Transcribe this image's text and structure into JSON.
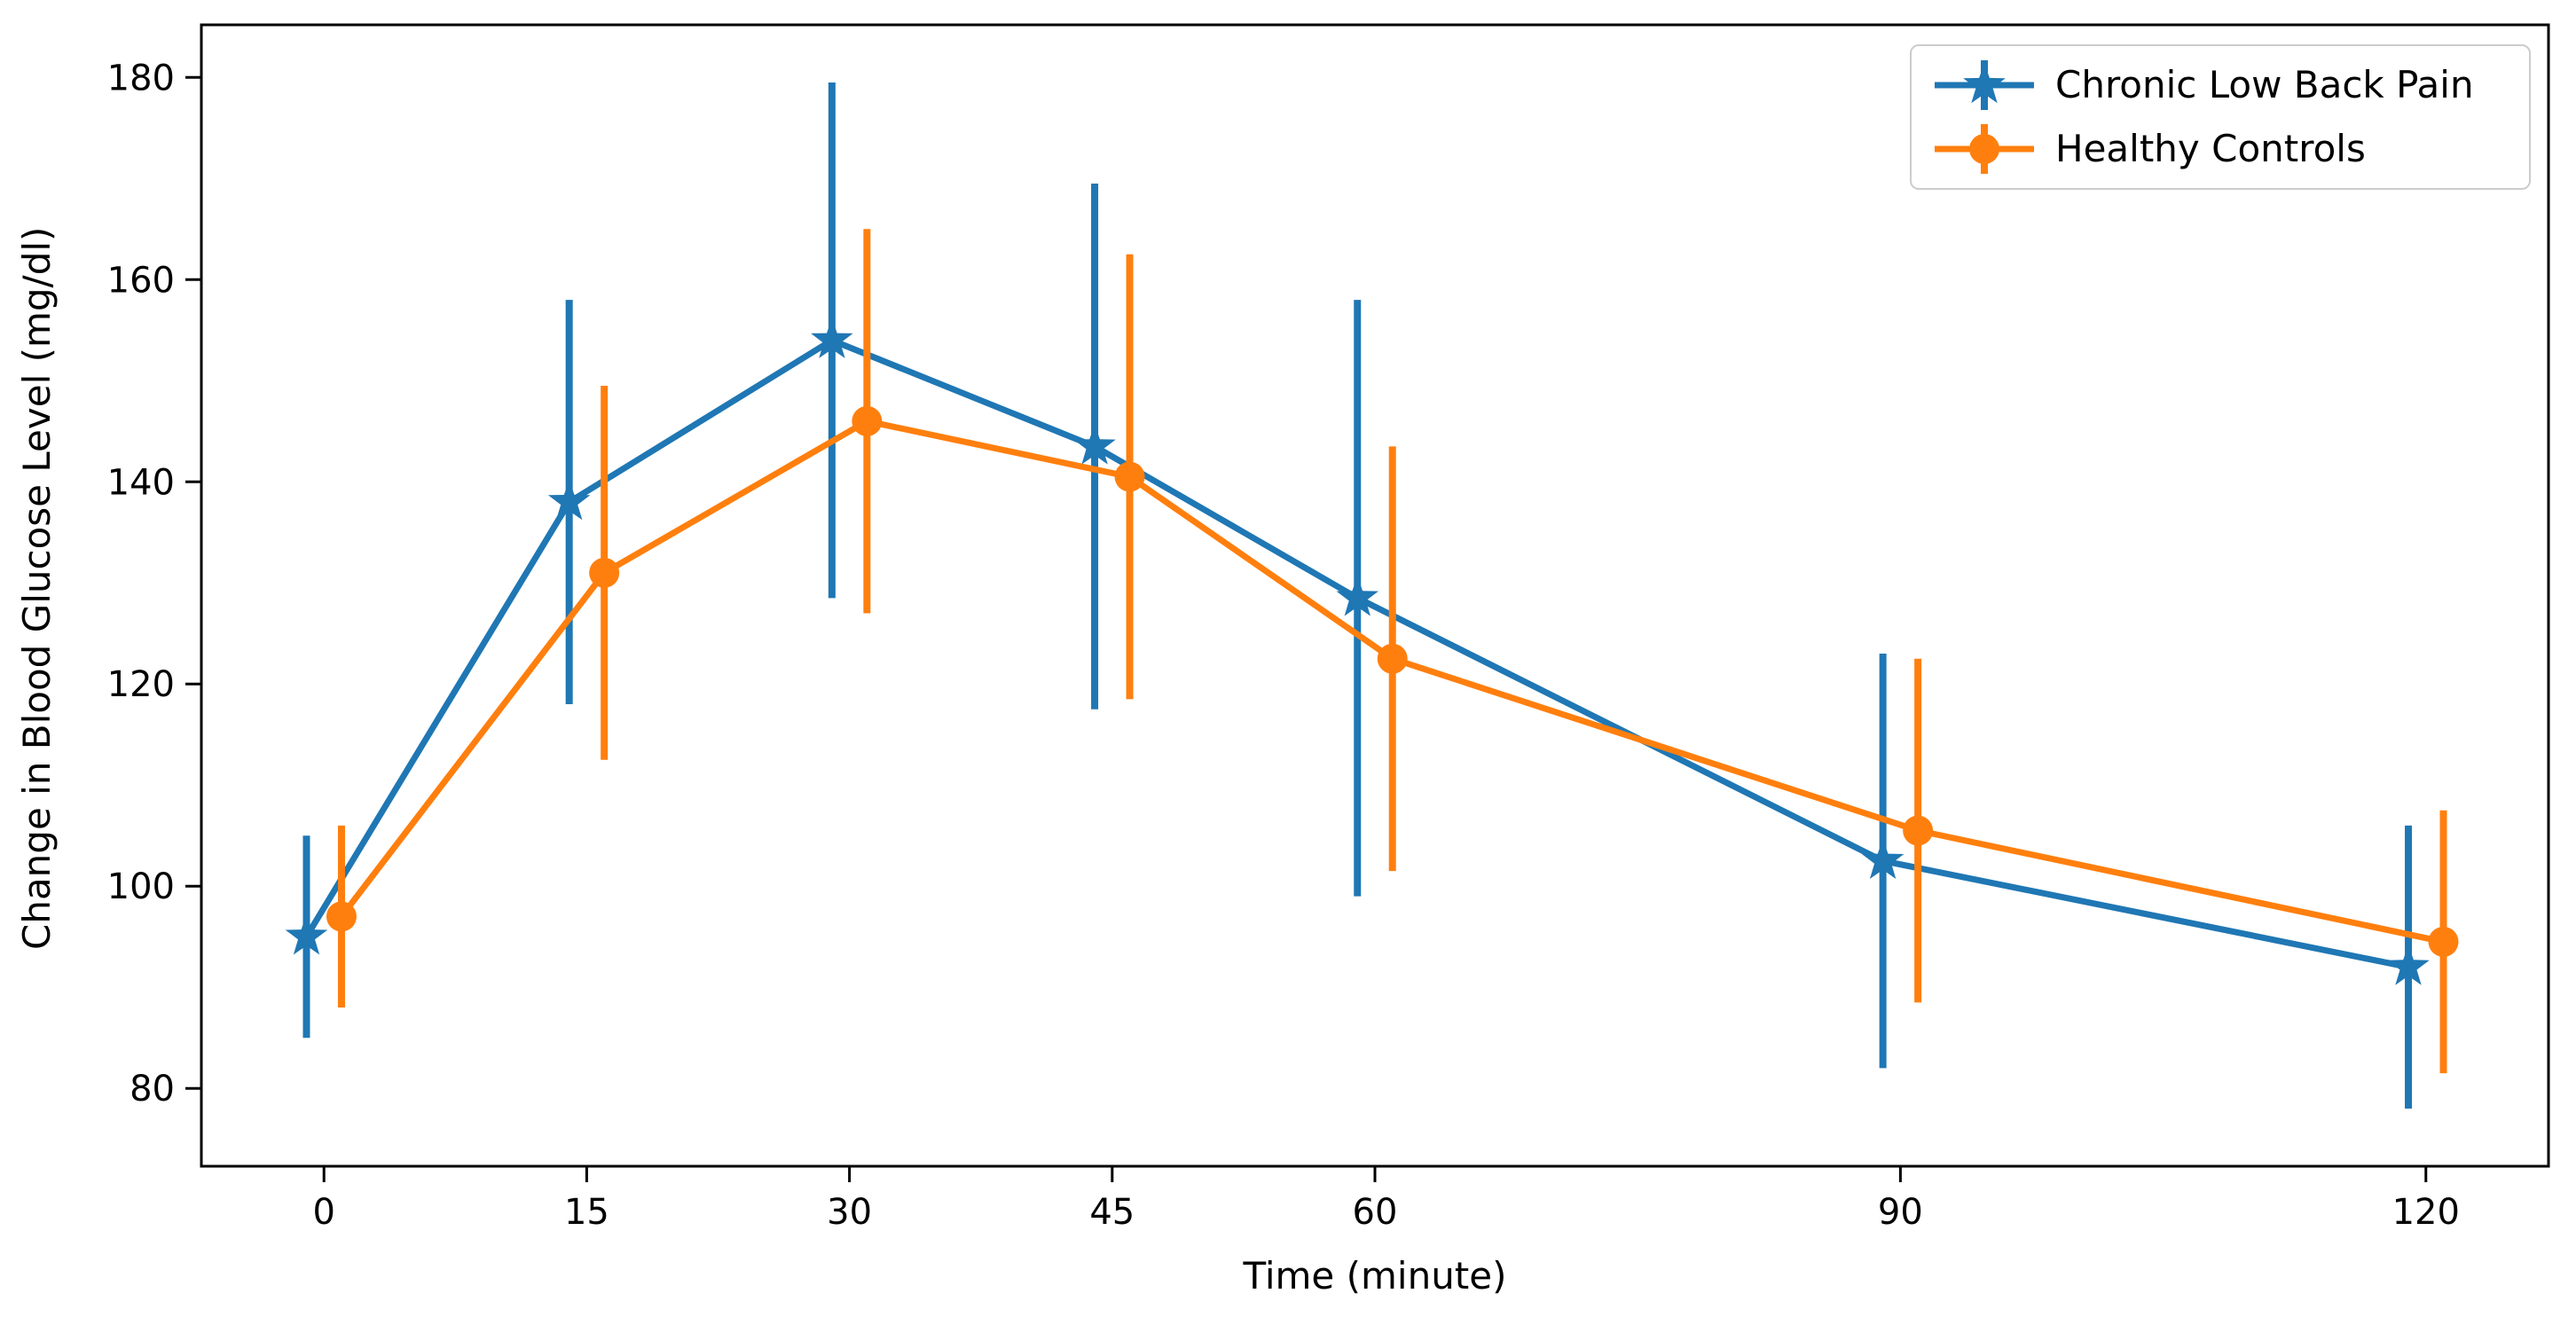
{
  "figure": {
    "xlabel": "Time (minute)",
    "ylabel": "Change in Blood Glucose Level (mg/dl)"
  },
  "axis": {
    "x_tick_labels": [
      "0",
      "15",
      "30",
      "45",
      "60",
      "90",
      "120"
    ],
    "y_tick_labels": [
      "80",
      "100",
      "120",
      "140",
      "160",
      "180"
    ]
  },
  "colors": {
    "series_blue": "#1f77b4",
    "series_orange": "#ff7f0e",
    "axis_line": "#000000",
    "legend_border": "#cccccc"
  },
  "chart_data": {
    "type": "line",
    "title": "",
    "xlabel": "Time (minute)",
    "ylabel": "Change in Blood Glucose Level (mg/dl)",
    "x": [
      0,
      15,
      30,
      45,
      60,
      90,
      120
    ],
    "x_ticks": [
      0,
      15,
      30,
      45,
      60,
      90,
      120
    ],
    "y_ticks": [
      80,
      100,
      120,
      140,
      160,
      180
    ],
    "xlim": [
      -7,
      127
    ],
    "ylim": [
      72.3,
      185.2
    ],
    "grid": false,
    "legend_position": "upper right",
    "error_bars": true,
    "series": [
      {
        "name": "Chronic Low Back Pain",
        "color": "#1f77b4",
        "marker": "star",
        "x_offset": -1,
        "values": [
          95,
          138,
          154,
          143.5,
          128.5,
          102.5,
          92
        ],
        "errors": [
          10,
          20,
          25.5,
          26,
          29.5,
          20.5,
          14
        ]
      },
      {
        "name": "Healthy Controls",
        "color": "#ff7f0e",
        "marker": "circle",
        "x_offset": 1,
        "values": [
          97,
          131,
          146,
          140.5,
          122.5,
          105.5,
          94.5
        ],
        "errors": [
          9,
          18.5,
          19,
          22,
          21,
          17,
          13
        ]
      }
    ]
  }
}
